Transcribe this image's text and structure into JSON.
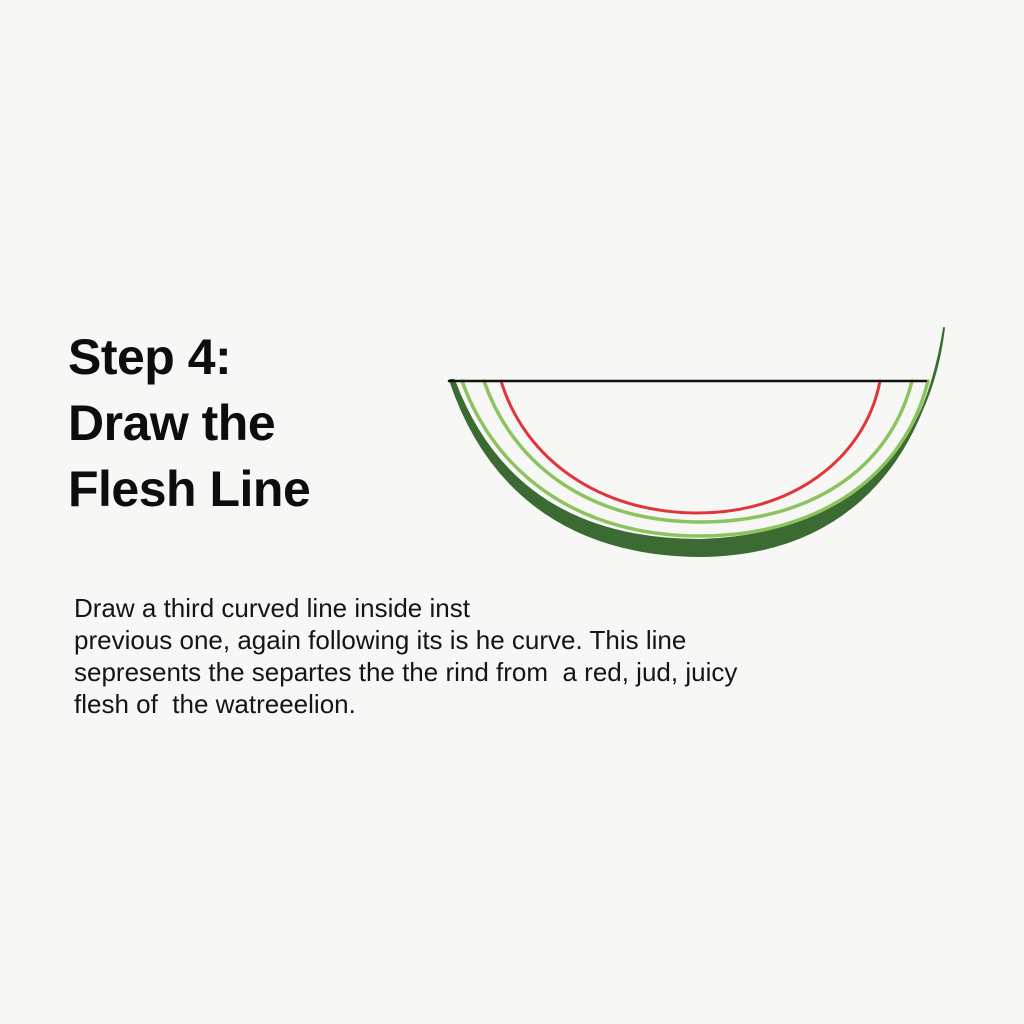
{
  "heading": {
    "line1": "Step 4:",
    "line2": "Draw the",
    "line3": "Flesh Line"
  },
  "description": {
    "line1": "Draw a third curved line inside inst",
    "line2": "previous one, again following its is he curve. This line",
    "line3": "sepresents the separtes the the rind from  a red, jud, juicy",
    "line4": "flesh of  the watreeelion."
  },
  "colors": {
    "background": "#f7f7f6",
    "rind_dark": "#3b6b32",
    "rind_light": "#8cc35f",
    "flesh_line": "#e0363a",
    "top_line": "#111111"
  }
}
